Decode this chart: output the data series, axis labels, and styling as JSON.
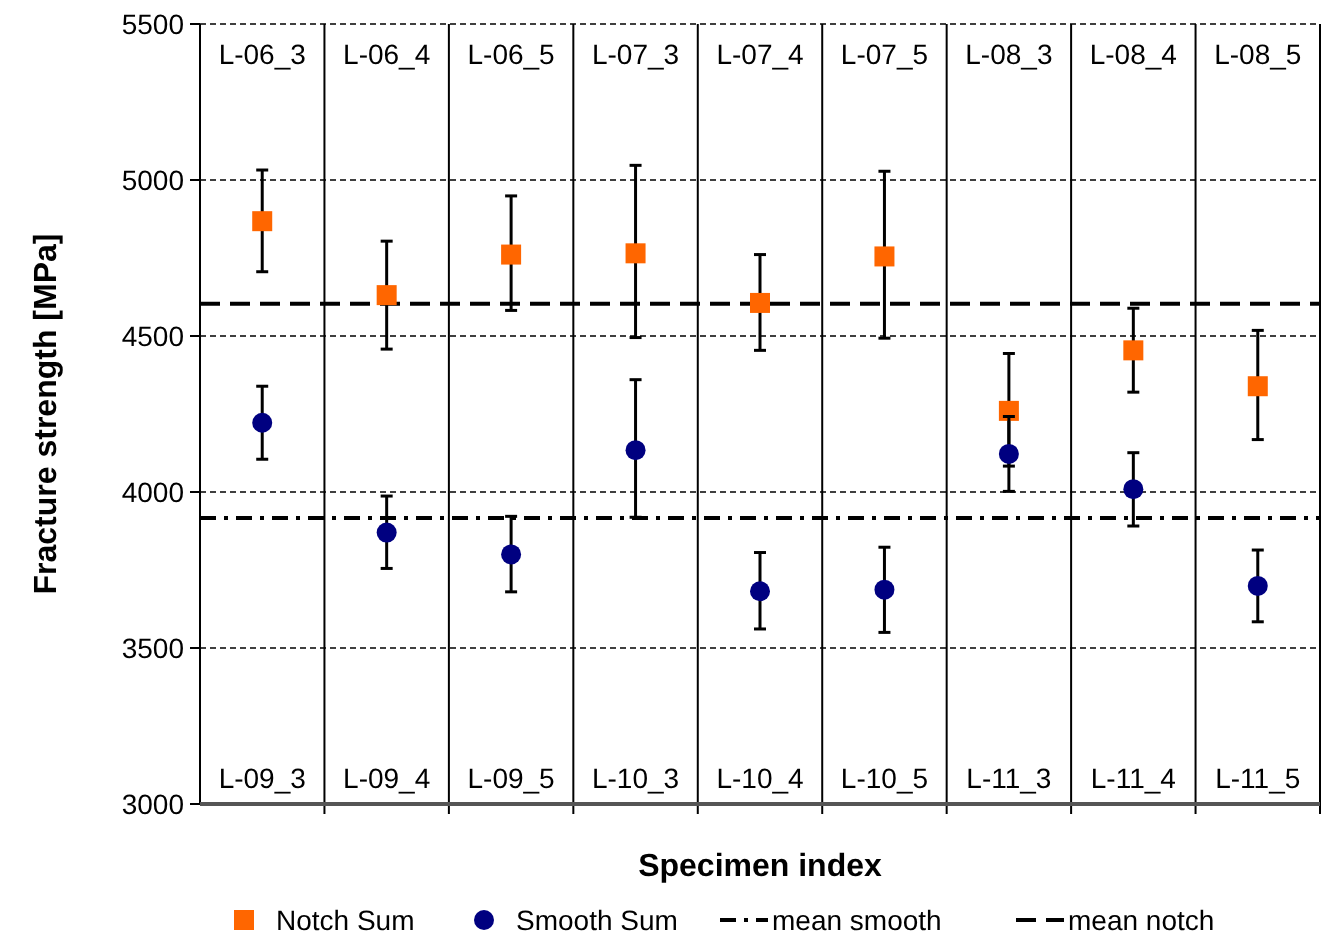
{
  "chart_data": {
    "type": "scatter",
    "xlabel": "Specimen index",
    "ylabel": "Fracture strength [MPa]",
    "categories": [
      "L-06_3",
      "L-06_4",
      "L-06_5",
      "L-07_3",
      "L-07_4",
      "L-07_5",
      "L-08_3",
      "L-08_4",
      "L-08_5"
    ],
    "series": [
      {
        "name": "Notch Sum",
        "color": "#ff6600",
        "marker": "square",
        "values": [
          4868,
          4631,
          4761,
          4765,
          4606,
          4755,
          4260,
          4454,
          4339
        ],
        "errors": [
          [
            4706,
            5032
          ],
          [
            4458,
            4804
          ],
          [
            4582,
            4949
          ],
          [
            4495,
            5047
          ],
          [
            4454,
            4761
          ],
          [
            4493,
            5028
          ],
          [
            4083,
            4444
          ],
          [
            4320,
            4589
          ],
          [
            4168,
            4518
          ]
        ]
      },
      {
        "name": "Smooth Sum",
        "color": "#000080",
        "marker": "circle",
        "values": [
          4222,
          3870,
          3800,
          4134,
          3682,
          3687,
          4122,
          4009,
          3699
        ],
        "errors": [
          [
            4105,
            4339
          ],
          [
            3755,
            3987
          ],
          [
            3680,
            3922
          ],
          [
            3919,
            4360
          ],
          [
            3561,
            3806
          ],
          [
            3550,
            3823
          ],
          [
            4002,
            4242
          ],
          [
            3891,
            4126
          ],
          [
            3584,
            3814
          ]
        ]
      }
    ],
    "ref_lines": [
      {
        "axis": "y",
        "value": 3917,
        "label": "mean smooth",
        "line_style": "dashdot",
        "color": "#000000"
      },
      {
        "axis": "y",
        "value": 4603,
        "label": "mean notch",
        "line_style": "dashed",
        "color": "#000000"
      }
    ],
    "annotations": [
      "L-09_3",
      "L-09_4",
      "L-09_5",
      "L-10_3",
      "L-10_4",
      "L-10_5",
      "L-11_3",
      "L-11_4",
      "L-11_5"
    ],
    "ylim": [
      3000,
      5500
    ],
    "yticks": [
      3000,
      3500,
      4000,
      4500,
      5000,
      5500
    ],
    "grid": true,
    "legend": "bottom"
  }
}
